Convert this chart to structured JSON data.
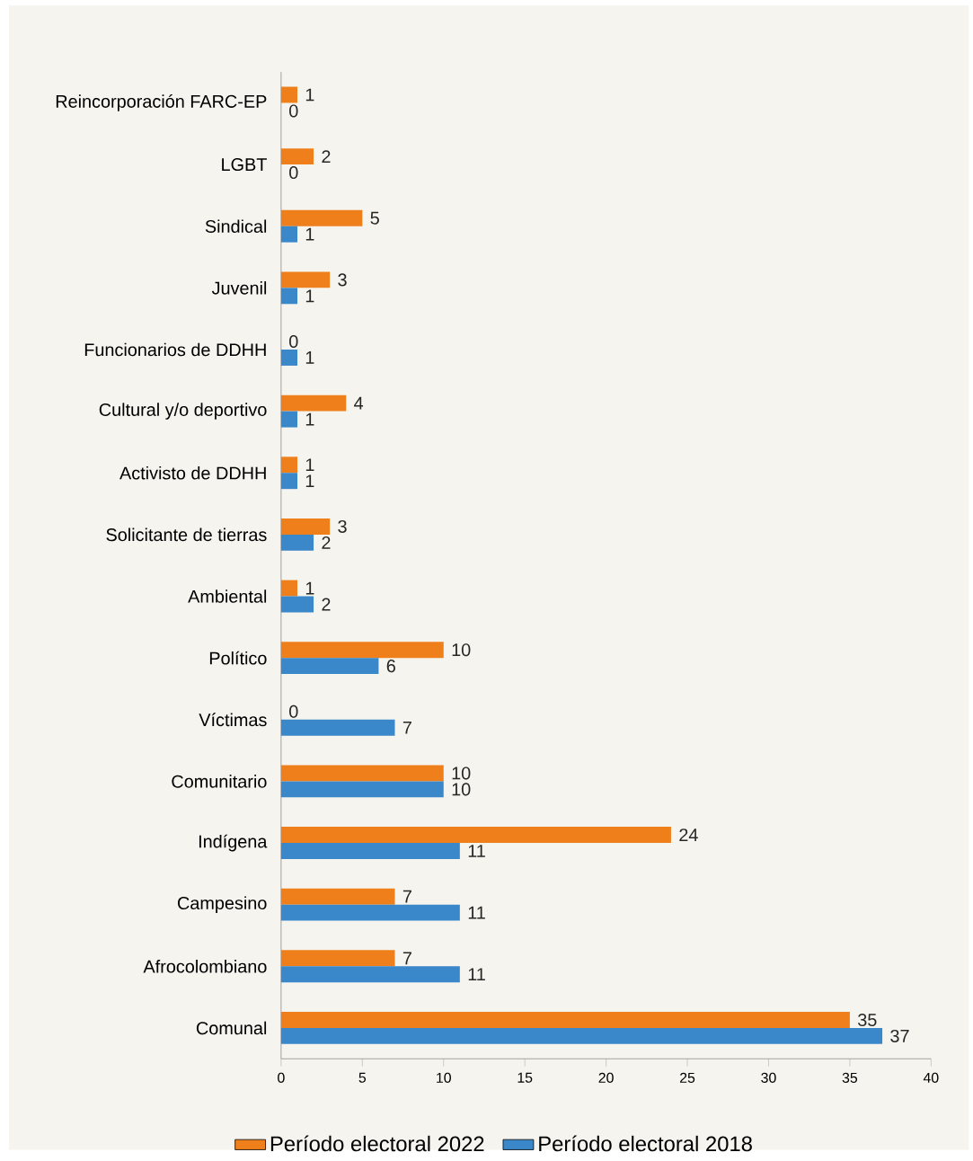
{
  "chart_data": {
    "type": "bar",
    "orientation": "horizontal",
    "categories": [
      "Reincorporación FARC-EP",
      "LGBT",
      "Sindical",
      "Juvenil",
      "Funcionarios de DDHH",
      "Cultural y/o deportivo",
      "Activisto de DDHH",
      "Solicitante de tierras",
      "Ambiental",
      "Político",
      "Víctimas",
      "Comunitario",
      "Indígena",
      "Campesino",
      "Afrocolombiano",
      "Comunal"
    ],
    "series": [
      {
        "name": "Período electoral 2022",
        "color": "#ef7f1a",
        "values": [
          1,
          2,
          5,
          3,
          0,
          4,
          1,
          3,
          1,
          10,
          0,
          10,
          24,
          7,
          7,
          35
        ]
      },
      {
        "name": "Período electoral 2018",
        "color": "#3a87c9",
        "values": [
          0,
          0,
          1,
          1,
          1,
          1,
          1,
          2,
          2,
          6,
          7,
          10,
          11,
          11,
          11,
          37
        ]
      }
    ],
    "xlim": [
      0,
      40
    ],
    "xticks": [
      0,
      5,
      10,
      15,
      20,
      25,
      30,
      35,
      40
    ],
    "data_labels": true,
    "legend": "bottom"
  }
}
